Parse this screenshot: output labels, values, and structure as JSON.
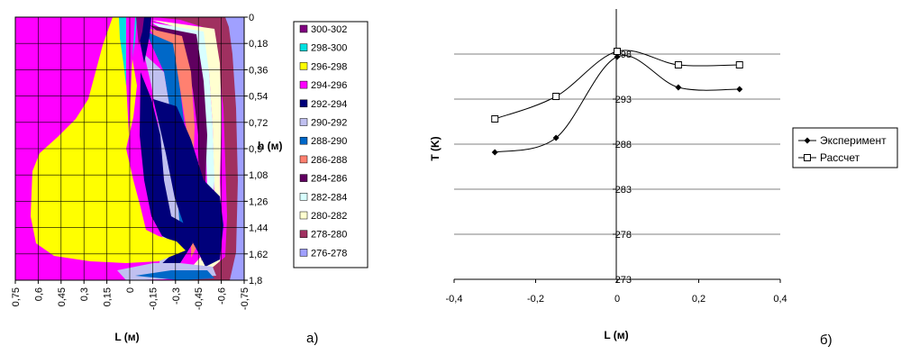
{
  "chart_data": [
    {
      "type": "heatmap",
      "panel_label": "а)",
      "xlabel": "L (м)",
      "ylabel": "h (м)",
      "x_ticks": [
        "0,75",
        "0,6",
        "0,45",
        "0,3",
        "0,15",
        "0",
        "-0,15",
        "-0,3",
        "-0,45",
        "-0,6",
        "-0,75"
      ],
      "y_ticks": [
        "0",
        "0,18",
        "0,36",
        "0,54",
        "0,72",
        "0,9",
        "1,08",
        "1,26",
        "1,44",
        "1,62",
        "1,8"
      ],
      "xlim": [
        0.75,
        -0.75
      ],
      "ylim": [
        0,
        1.8
      ],
      "legend": [
        {
          "label": "300-302",
          "color": "#800080"
        },
        {
          "label": "298-300",
          "color": "#00e0e0"
        },
        {
          "label": "296-298",
          "color": "#ffff00"
        },
        {
          "label": "294-296",
          "color": "#ff00ff"
        },
        {
          "label": "292-294",
          "color": "#00007a"
        },
        {
          "label": "290-292",
          "color": "#c0c0f0"
        },
        {
          "label": "288-290",
          "color": "#0068c8"
        },
        {
          "label": "286-288",
          "color": "#ff8070"
        },
        {
          "label": "284-286",
          "color": "#600060"
        },
        {
          "label": "282-284",
          "color": "#d8ffff"
        },
        {
          "label": "280-282",
          "color": "#ffffd0"
        },
        {
          "label": "278-280",
          "color": "#a03060"
        },
        {
          "label": "276-278",
          "color": "#a0a0ff"
        }
      ]
    },
    {
      "type": "line",
      "panel_label": "б)",
      "xlabel": "L (м)",
      "ylabel": "T (K)",
      "xlim": [
        -0.4,
        0.4
      ],
      "ylim": [
        273,
        303
      ],
      "x_ticks": [
        "-0,4",
        "-0,2",
        "0",
        "0,2",
        "0,4"
      ],
      "y_ticks": [
        "273",
        "278",
        "283",
        "288",
        "293",
        "298"
      ],
      "grid": true,
      "legend_position": "right",
      "series": [
        {
          "name": "Эксперимент",
          "marker": "diamond",
          "x": [
            -0.3,
            -0.15,
            0,
            0.15,
            0.3
          ],
          "y": [
            287.1,
            288.7,
            297.7,
            294.3,
            294.1
          ]
        },
        {
          "name": "Рассчет",
          "marker": "square",
          "x": [
            -0.3,
            -0.15,
            0,
            0.15,
            0.3
          ],
          "y": [
            290.8,
            293.3,
            298.3,
            296.8,
            296.8
          ]
        }
      ]
    }
  ]
}
